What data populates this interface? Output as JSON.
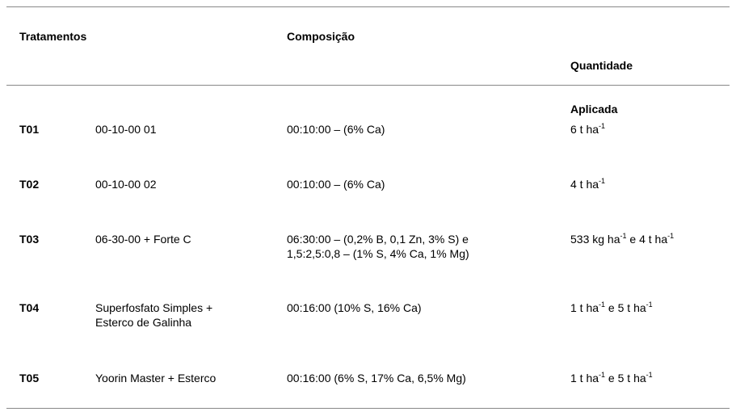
{
  "table": {
    "header": {
      "treatments": "Tratamentos",
      "composition": "Composição",
      "quantity": [
        "Quantidade",
        "Aplicada"
      ]
    },
    "rows": [
      {
        "code": "T01",
        "treatment": [
          "00-10-00 01"
        ],
        "composition": [
          "00:10:00 – (6% Ca)"
        ],
        "quantity": [
          "6 t ha",
          "-1"
        ]
      },
      {
        "code": "T02",
        "treatment": [
          "00-10-00 02"
        ],
        "composition": [
          "00:10:00 – (6% Ca)"
        ],
        "quantity": [
          "4 t ha",
          "-1"
        ]
      },
      {
        "code": "T03",
        "treatment": [
          "06-30-00 + Forte C"
        ],
        "composition": [
          "06:30:00 – (0,2% B, 0,1 Zn, 3% S) e",
          "1,5:2,5:0,8 – (1% S, 4% Ca, 1% Mg)"
        ],
        "quantity": [
          "533 kg ha",
          "-1",
          " e 4 t ha",
          "-1"
        ]
      },
      {
        "code": "T04",
        "treatment": [
          "Superfosfato Simples +",
          "Esterco de Galinha"
        ],
        "composition": [
          "00:16:00 (10% S, 16% Ca)"
        ],
        "quantity": [
          "1 t ha",
          "-1",
          " e 5 t ha",
          "-1"
        ]
      },
      {
        "code": "T05",
        "treatment": [
          "Yoorin Master + Esterco"
        ],
        "composition": [
          "00:16:00 (6% S, 17% Ca, 6,5% Mg)"
        ],
        "quantity": [
          "1 t ha",
          "-1",
          " e 5 t ha",
          "-1"
        ]
      }
    ]
  }
}
